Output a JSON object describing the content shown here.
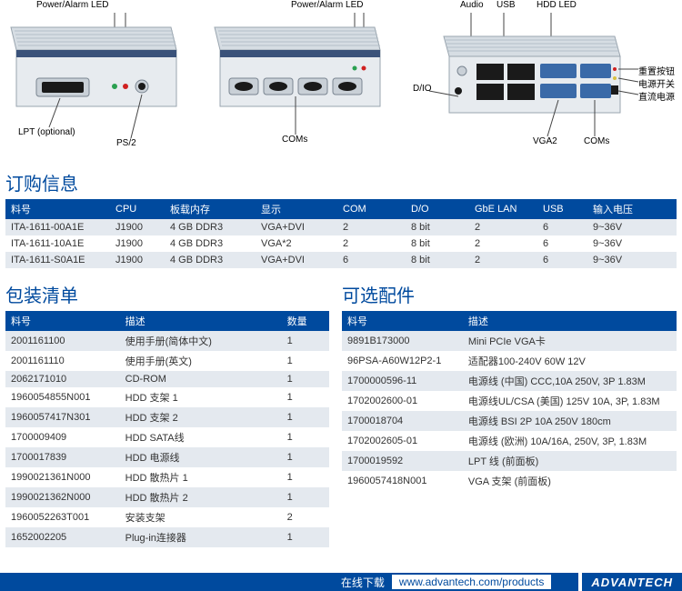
{
  "diagrams": {
    "front": {
      "power_alarm": "Power/Alarm LED",
      "lpt": "LPT (optional)",
      "ps2": "PS/2"
    },
    "mid": {
      "power_alarm": "Power/Alarm LED",
      "coms": "COMs"
    },
    "rear": {
      "audio": "Audio",
      "usb": "USB",
      "hdd_led": "HDD LED",
      "dio": "D/IO",
      "reset": "重置按钮",
      "power_sw": "电源开关",
      "dc_in": "直流电源",
      "vga2": "VGA2",
      "coms": "COMs"
    }
  },
  "order": {
    "title": "订购信息",
    "headers": [
      "料号",
      "CPU",
      "板载内存",
      "显示",
      "COM",
      "D/O",
      "GbE LAN",
      "USB",
      "输入电压"
    ],
    "col_widths": [
      "115",
      "60",
      "100",
      "90",
      "75",
      "70",
      "75",
      "55",
      "98"
    ],
    "rows": [
      [
        "ITA-1611-00A1E",
        "J1900",
        "4 GB DDR3",
        "VGA+DVI",
        "2",
        "8 bit",
        "2",
        "6",
        "9~36V"
      ],
      [
        "ITA-1611-10A1E",
        "J1900",
        "4 GB DDR3",
        "VGA*2",
        "2",
        "8 bit",
        "2",
        "6",
        "9~36V"
      ],
      [
        "ITA-1611-S0A1E",
        "J1900",
        "4 GB DDR3",
        "VGA+DVI",
        "6",
        "8 bit",
        "2",
        "6",
        "9~36V"
      ]
    ]
  },
  "pack": {
    "title": "包装清单",
    "headers": [
      "料号",
      "描述",
      "数量"
    ],
    "col_widths": [
      "120",
      "170",
      "50"
    ],
    "rows": [
      [
        "2001161100",
        "使用手册(简体中文)",
        "1"
      ],
      [
        "2001161110",
        "使用手册(英文)",
        "1"
      ],
      [
        "2062171010",
        "CD-ROM",
        "1"
      ],
      [
        "1960054855N001",
        "HDD 支架 1",
        "1"
      ],
      [
        "1960057417N301",
        "HDD 支架 2",
        "1"
      ],
      [
        "1700009409",
        "HDD SATA线",
        "1"
      ],
      [
        "1700017839",
        "HDD 电源线",
        "1"
      ],
      [
        "1990021361N000",
        "HDD 散热片 1",
        "1"
      ],
      [
        "1990021362N000",
        "HDD 散热片 2",
        "1"
      ],
      [
        "1960052263T001",
        "安装支架",
        "2"
      ],
      [
        "1652002205",
        "Plug-in连接器",
        "1"
      ]
    ]
  },
  "opt": {
    "title": "可选配件",
    "headers": [
      "料号",
      "描述"
    ],
    "col_widths": [
      "130",
      "230"
    ],
    "rows": [
      [
        "9891B173000",
        "Mini PCIe VGA卡"
      ],
      [
        "96PSA-A60W12P2-1",
        "适配器100-240V 60W 12V"
      ],
      [
        "1700000596-11",
        "电源线 (中国) CCC,10A 250V, 3P 1.83M"
      ],
      [
        "1702002600-01",
        "电源线UL/CSA (美国) 125V 10A, 3P, 1.83M"
      ],
      [
        "1700018704",
        "电源线 BSI 2P 10A 250V 180cm"
      ],
      [
        "1702002605-01",
        "电源线 (欧洲) 10A/16A, 250V, 3P, 1.83M"
      ],
      [
        "1700019592",
        "LPT 线 (前面板)"
      ],
      [
        "1960057418N001",
        "VGA 支架 (前面板)"
      ]
    ]
  },
  "footer": {
    "label": "在线下载",
    "url": "www.advantech.com/products",
    "brand": "ADVANTECH"
  },
  "colors": {
    "brand": "#004a9e",
    "row_alt": "#e4e9ef",
    "device_body_light": "#d6dde3",
    "device_body_dark": "#b4bfc8",
    "device_face": "#e7ebef",
    "port_dark": "#1a1a1a"
  }
}
